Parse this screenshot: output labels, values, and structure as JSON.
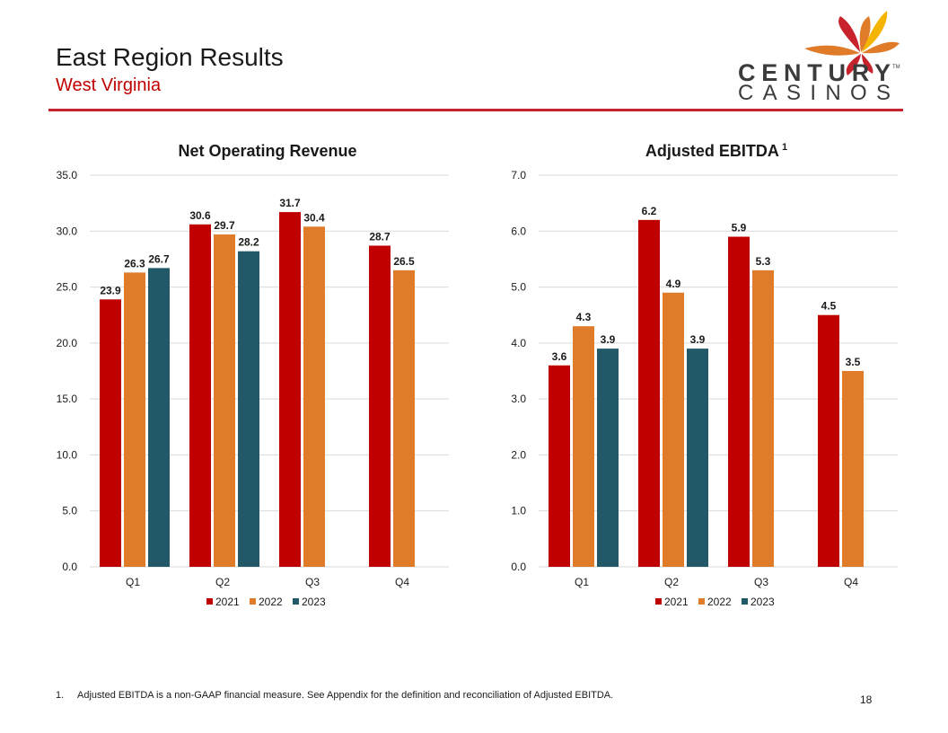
{
  "header": {
    "title": "East Region Results",
    "subtitle": "West Virginia"
  },
  "logo": {
    "line1": "CENTURY",
    "line2": "CASINOS",
    "tm": "TM"
  },
  "colors": {
    "2021": "#c00000",
    "2022": "#e07b2a",
    "2023": "#215968",
    "accent": "#c8232c",
    "grid": "#d9d9d9"
  },
  "chart_data": [
    {
      "type": "bar",
      "title": "Net Operating Revenue",
      "title_sup": "",
      "categories": [
        "Q1",
        "Q2",
        "Q3",
        "Q4"
      ],
      "ylim": [
        0,
        35
      ],
      "yticks": [
        "0.0",
        "5.0",
        "10.0",
        "15.0",
        "20.0",
        "25.0",
        "30.0",
        "35.0"
      ],
      "grid": true,
      "legend": "bottom",
      "series": [
        {
          "name": "2021",
          "values": [
            23.9,
            30.6,
            31.7,
            28.7
          ],
          "labels": [
            "23.9",
            "30.6",
            "31.7",
            "28.7"
          ]
        },
        {
          "name": "2022",
          "values": [
            26.3,
            29.7,
            30.4,
            26.5
          ],
          "labels": [
            "26.3",
            "29.7",
            "30.4",
            "26.5"
          ]
        },
        {
          "name": "2023",
          "values": [
            26.7,
            28.2,
            null,
            null
          ],
          "labels": [
            "26.7",
            "28.2",
            null,
            null
          ]
        }
      ]
    },
    {
      "type": "bar",
      "title": "Adjusted EBITDA",
      "title_sup": "1",
      "categories": [
        "Q1",
        "Q2",
        "Q3",
        "Q4"
      ],
      "ylim": [
        0,
        7
      ],
      "yticks": [
        "0.0",
        "1.0",
        "2.0",
        "3.0",
        "4.0",
        "5.0",
        "6.0",
        "7.0"
      ],
      "grid": true,
      "legend": "bottom",
      "series": [
        {
          "name": "2021",
          "values": [
            3.6,
            6.2,
            5.9,
            4.5
          ],
          "labels": [
            "3.6",
            "6.2",
            "5.9",
            "4.5"
          ]
        },
        {
          "name": "2022",
          "values": [
            4.3,
            4.9,
            5.3,
            3.5
          ],
          "labels": [
            "4.3",
            "4.9",
            "5.3",
            "3.5"
          ]
        },
        {
          "name": "2023",
          "values": [
            3.9,
            3.9,
            null,
            null
          ],
          "labels": [
            "3.9",
            "3.9",
            null,
            null
          ]
        }
      ]
    }
  ],
  "footnote": {
    "number": "1.",
    "text": "Adjusted EBITDA is a non-GAAP financial measure. See Appendix for the definition and reconciliation of Adjusted EBITDA."
  },
  "page_number": "18"
}
